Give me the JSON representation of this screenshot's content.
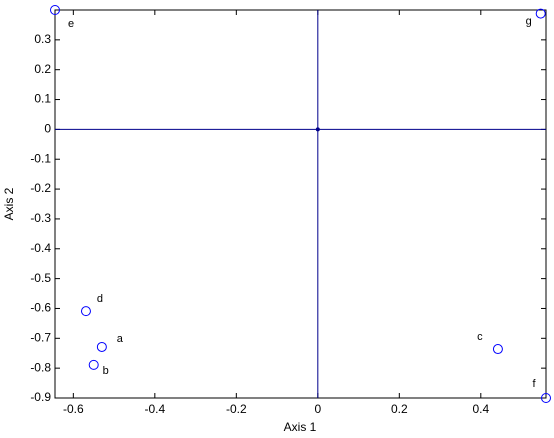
{
  "chart_data": {
    "type": "scatter",
    "x_label": "Axis 1",
    "y_label": "Axis 2",
    "labels": [
      "a",
      "b",
      "c",
      "d",
      "e",
      "f",
      "g"
    ],
    "x": [
      -0.53,
      -0.55,
      0.442,
      -0.569,
      -0.645,
      0.56,
      0.547
    ],
    "y": [
      -0.729,
      -0.789,
      -0.736,
      -0.609,
      0.4,
      -0.9,
      0.388
    ],
    "color": "#0000ff",
    "reference_color": "#00008b",
    "xlim": [
      -0.645,
      0.56
    ],
    "ylim": [
      -0.9,
      0.4
    ],
    "xticks": [
      -0.6,
      -0.4,
      -0.2,
      0,
      0.2,
      0.4
    ],
    "yticks": [
      -0.9,
      -0.8,
      -0.7,
      -0.6,
      -0.5,
      -0.4,
      -0.3,
      -0.2,
      -0.1,
      0,
      0.1,
      0.2,
      0.3
    ]
  }
}
